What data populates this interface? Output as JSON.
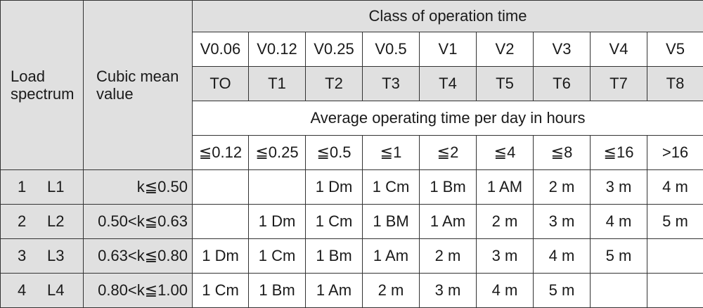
{
  "headers": {
    "load_spectrum": "Load spectrum",
    "cubic_mean_value": "Cubic mean value",
    "class_of_operation_time": "Class of operation time",
    "avg_operating_time": "Average operating time per day in hours"
  },
  "v_classes": [
    "V0.06",
    "V0.12",
    "V0.25",
    "V0.5",
    "V1",
    "V2",
    "V3",
    "V4",
    "V5"
  ],
  "t_classes": [
    "TO",
    "T1",
    "T2",
    "T3",
    "T4",
    "T5",
    "T6",
    "T7",
    "T8"
  ],
  "hours": [
    "≦0.12",
    "≦0.25",
    "≦0.5",
    "≦1",
    "≦2",
    "≦4",
    "≦8",
    "≦16",
    ">16"
  ],
  "rows": [
    {
      "num": "1",
      "code": "L1",
      "k": "k≦0.50",
      "cells": [
        "",
        "",
        "1 Dm",
        "1 Cm",
        "1 Bm",
        "1 AM",
        "2 m",
        "3 m",
        "4 m"
      ]
    },
    {
      "num": "2",
      "code": "L2",
      "k": "0.50<k≦0.63",
      "cells": [
        "",
        "1 Dm",
        "1 Cm",
        "1 BM",
        "1 Am",
        "2 m",
        "3 m",
        "4 m",
        "5 m"
      ]
    },
    {
      "num": "3",
      "code": "L3",
      "k": "0.63<k≦0.80",
      "cells": [
        "1 Dm",
        "1 Cm",
        "1 Bm",
        "1 Am",
        "2 m",
        "3 m",
        "4 m",
        "5 m",
        ""
      ]
    },
    {
      "num": "4",
      "code": "L4",
      "k": "0.80<k≦1.00",
      "cells": [
        "1 Cm",
        "1 Bm",
        "1 Am",
        "2 m",
        "3 m",
        "4 m",
        "5 m",
        "",
        ""
      ]
    }
  ]
}
